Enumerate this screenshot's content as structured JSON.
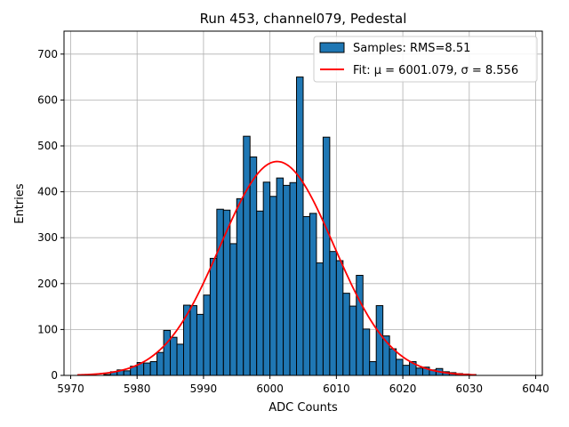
{
  "chart_data": {
    "type": "bar",
    "title": "Run 453, channel079, Pedestal",
    "xlabel": "ADC Counts",
    "ylabel": "Entries",
    "xlim": [
      5969,
      6041
    ],
    "ylim": [
      0,
      750
    ],
    "xticks": [
      5970,
      5980,
      5990,
      6000,
      6010,
      6020,
      6030,
      6040
    ],
    "yticks": [
      0,
      100,
      200,
      300,
      400,
      500,
      600,
      700
    ],
    "grid": true,
    "legend_position": "top-right",
    "histogram": {
      "name": "Samples: RMS=8.51",
      "color": "#1f77b4",
      "edge_color": "#000000",
      "bin_start": 5975,
      "bin_width": 1,
      "counts": [
        2,
        8,
        12,
        10,
        20,
        28,
        27,
        30,
        50,
        98,
        83,
        68,
        153,
        152,
        133,
        175,
        255,
        362,
        360,
        287,
        385,
        521,
        476,
        358,
        421,
        390,
        430,
        414,
        420,
        650,
        346,
        353,
        245,
        519,
        270,
        250,
        179,
        151,
        218,
        101,
        30,
        152,
        86,
        58,
        35,
        22,
        30,
        16,
        18,
        12,
        15,
        8,
        6,
        4,
        3,
        2
      ]
    },
    "fit": {
      "name": "Fit: μ = 6001.079, σ = 8.556",
      "color": "#ff0000",
      "mu": 6001.079,
      "sigma": 8.556,
      "amplitude": 466,
      "x_range": [
        5971,
        6031
      ]
    }
  }
}
